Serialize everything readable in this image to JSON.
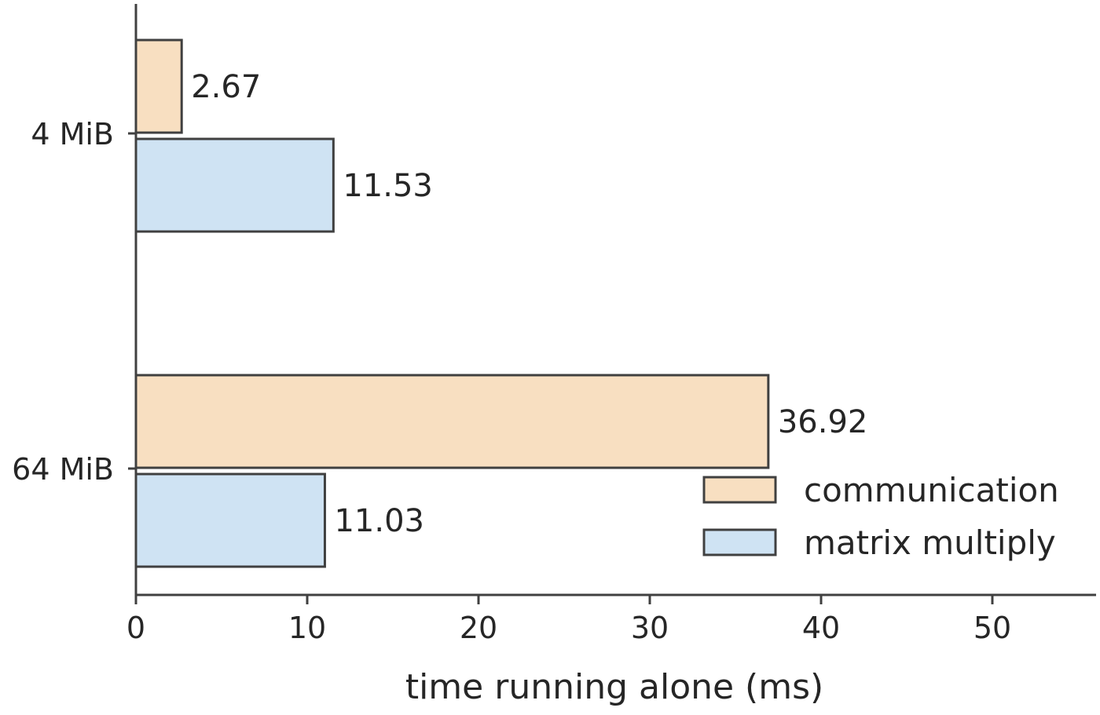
{
  "chart_data": {
    "type": "bar",
    "orientation": "horizontal",
    "categories": [
      "4 MiB",
      "64 MiB"
    ],
    "series": [
      {
        "name": "communication",
        "values": [
          2.67,
          36.92
        ],
        "color": "#f8dfc1"
      },
      {
        "name": "matrix multiply",
        "values": [
          11.53,
          11.03
        ],
        "color": "#cfe3f3"
      }
    ],
    "value_labels": [
      [
        "2.67",
        "36.92"
      ],
      [
        "11.53",
        "11.03"
      ]
    ],
    "xlabel": "time running alone (ms)",
    "ylabel": "",
    "title": "",
    "xlim": [
      0,
      56
    ],
    "xticks": [
      0,
      10,
      20,
      30,
      40,
      50
    ],
    "xtick_labels": [
      "0",
      "10",
      "20",
      "30",
      "40",
      "50"
    ],
    "legend_position": "lower-right",
    "grid": false,
    "edge_color": "#404040"
  }
}
